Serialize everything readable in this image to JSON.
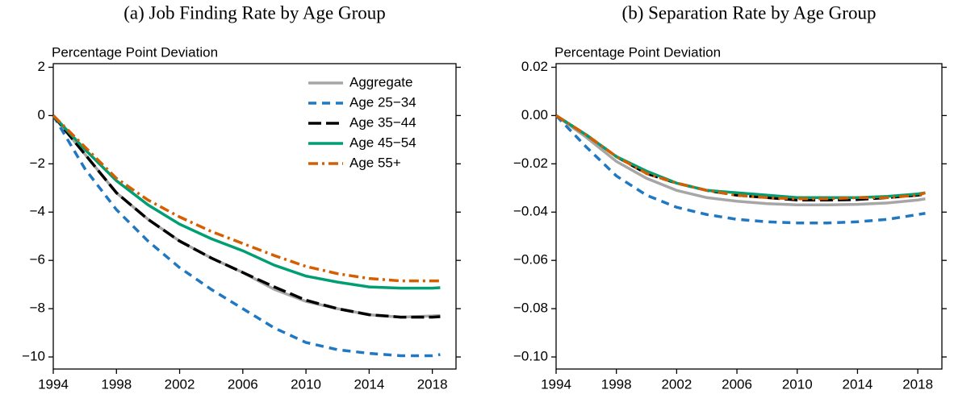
{
  "chart_data": [
    {
      "type": "line",
      "title": "(a) Job Finding Rate by Age Group",
      "ylabel": "Percentage Point Deviation",
      "x": [
        1994,
        1996,
        1998,
        2000,
        2002,
        2004,
        2006,
        2008,
        2010,
        2012,
        2014,
        2016,
        2018,
        2018.5
      ],
      "xlim": [
        1994,
        2019.5
      ],
      "xticks": [
        1994,
        1998,
        2002,
        2006,
        2010,
        2014,
        2018
      ],
      "ylim": [
        -10.5,
        2.15
      ],
      "yticks": [
        {
          "value": -10,
          "label": "−10"
        },
        {
          "value": -8,
          "label": "−8"
        },
        {
          "value": -6,
          "label": "−6"
        },
        {
          "value": -4,
          "label": "−4"
        },
        {
          "value": -2,
          "label": "−2"
        },
        0,
        2
      ],
      "legend": "upper right",
      "series": [
        {
          "name": "Aggregate",
          "color": "#a6a6a6",
          "linestyle": "solid",
          "values": [
            0,
            -1.6,
            -3.2,
            -4.3,
            -5.2,
            -5.9,
            -6.5,
            -7.2,
            -7.7,
            -8.0,
            -8.25,
            -8.35,
            -8.3,
            -8.28
          ]
        },
        {
          "name": "Age 25−34",
          "color": "#1f78c1",
          "linestyle": "dashed",
          "values": [
            0,
            -2.2,
            -3.9,
            -5.2,
            -6.3,
            -7.2,
            -8.0,
            -8.8,
            -9.4,
            -9.7,
            -9.85,
            -9.95,
            -9.95,
            -9.9
          ]
        },
        {
          "name": "Age 35−44",
          "color": "#000000",
          "linestyle": "longdash",
          "values": [
            0,
            -1.6,
            -3.2,
            -4.3,
            -5.2,
            -5.9,
            -6.5,
            -7.1,
            -7.65,
            -8.0,
            -8.25,
            -8.35,
            -8.35,
            -8.33
          ]
        },
        {
          "name": "Age 45−54",
          "color": "#009e73",
          "linestyle": "solid",
          "values": [
            0,
            -1.4,
            -2.7,
            -3.7,
            -4.5,
            -5.1,
            -5.6,
            -6.2,
            -6.65,
            -6.9,
            -7.1,
            -7.15,
            -7.15,
            -7.13
          ]
        },
        {
          "name": "Age 55+",
          "color": "#d55e00",
          "linestyle": "dashdot",
          "values": [
            0,
            -1.3,
            -2.6,
            -3.5,
            -4.2,
            -4.8,
            -5.3,
            -5.8,
            -6.25,
            -6.55,
            -6.75,
            -6.85,
            -6.85,
            -6.85
          ]
        }
      ]
    },
    {
      "type": "line",
      "title": "(b) Separation Rate by Age Group",
      "ylabel": "Percentage Point Deviation",
      "x": [
        1994,
        1996,
        1998,
        2000,
        2002,
        2004,
        2006,
        2008,
        2010,
        2012,
        2014,
        2016,
        2018,
        2018.5
      ],
      "xlim": [
        1994,
        2019.6
      ],
      "xticks": [
        1994,
        1998,
        2002,
        2006,
        2010,
        2014,
        2018
      ],
      "ylim": [
        -0.105,
        0.0215
      ],
      "yticks": [
        {
          "value": -0.1,
          "label": "−0.10"
        },
        {
          "value": -0.08,
          "label": "−0.08"
        },
        {
          "value": -0.06,
          "label": "−0.06"
        },
        {
          "value": -0.04,
          "label": "−0.04"
        },
        {
          "value": -0.02,
          "label": "−0.02"
        },
        {
          "value": 0,
          "label": "0.00"
        },
        {
          "value": 0.02,
          "label": "0.02"
        }
      ],
      "legend": "none",
      "series": [
        {
          "name": "Aggregate",
          "color": "#a6a6a6",
          "linestyle": "solid",
          "values": [
            0,
            -0.009,
            -0.019,
            -0.026,
            -0.031,
            -0.034,
            -0.0355,
            -0.0365,
            -0.037,
            -0.037,
            -0.0368,
            -0.0362,
            -0.035,
            -0.0345
          ]
        },
        {
          "name": "Age 25−34",
          "color": "#1f78c1",
          "linestyle": "dashed",
          "values": [
            0,
            -0.013,
            -0.025,
            -0.033,
            -0.038,
            -0.041,
            -0.043,
            -0.044,
            -0.0445,
            -0.0445,
            -0.044,
            -0.043,
            -0.041,
            -0.0405
          ]
        },
        {
          "name": "Age 35−44",
          "color": "#000000",
          "linestyle": "longdash",
          "values": [
            0,
            -0.008,
            -0.017,
            -0.024,
            -0.028,
            -0.031,
            -0.033,
            -0.034,
            -0.035,
            -0.035,
            -0.0348,
            -0.034,
            -0.033,
            -0.0325
          ]
        },
        {
          "name": "Age 45−54",
          "color": "#009e73",
          "linestyle": "solid",
          "values": [
            0,
            -0.008,
            -0.017,
            -0.023,
            -0.028,
            -0.031,
            -0.032,
            -0.033,
            -0.034,
            -0.034,
            -0.034,
            -0.0335,
            -0.0325,
            -0.032
          ]
        },
        {
          "name": "Age 55+",
          "color": "#d55e00",
          "linestyle": "dashdot",
          "values": [
            0,
            -0.008,
            -0.017,
            -0.024,
            -0.028,
            -0.031,
            -0.033,
            -0.034,
            -0.0345,
            -0.0345,
            -0.034,
            -0.034,
            -0.033,
            -0.032
          ]
        }
      ]
    }
  ]
}
